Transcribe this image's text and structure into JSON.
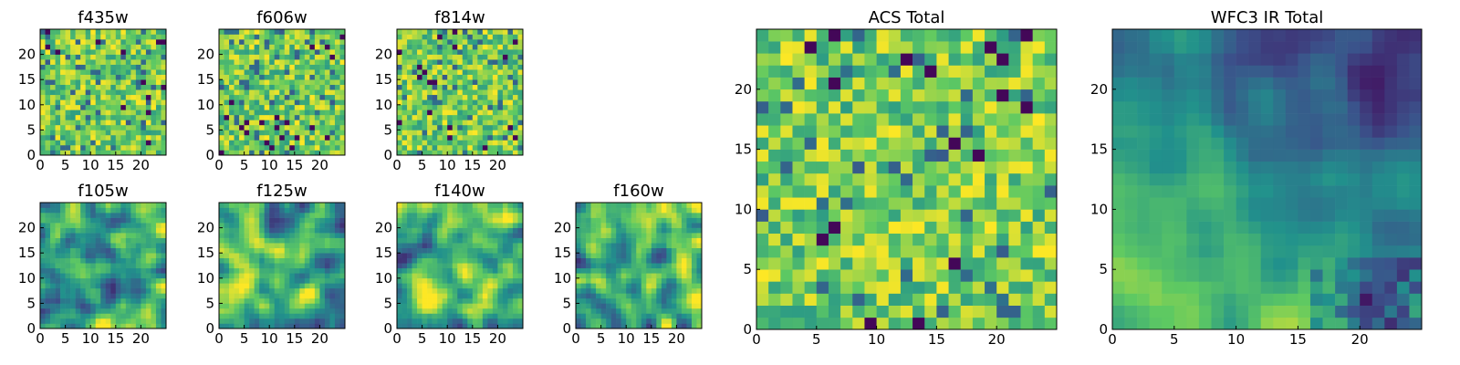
{
  "chart_data": [
    {
      "type": "heatmap",
      "title": "f435w",
      "size": 25,
      "xticks": [
        0,
        5,
        10,
        15,
        20
      ],
      "yticks": [
        0,
        5,
        10,
        15,
        20
      ],
      "texture": "noise",
      "seed": 11
    },
    {
      "type": "heatmap",
      "title": "f606w",
      "size": 25,
      "xticks": [
        0,
        5,
        10,
        15,
        20
      ],
      "yticks": [
        0,
        5,
        10,
        15,
        20
      ],
      "texture": "noise",
      "seed": 23
    },
    {
      "type": "heatmap",
      "title": "f814w",
      "size": 25,
      "xticks": [
        0,
        5,
        10,
        15,
        20
      ],
      "yticks": [
        0,
        5,
        10,
        15,
        20
      ],
      "texture": "noise",
      "seed": 37
    },
    {
      "type": "heatmap",
      "title": "f105w",
      "size": 25,
      "xticks": [
        0,
        5,
        10,
        15,
        20
      ],
      "yticks": [
        0,
        5,
        10,
        15,
        20
      ],
      "texture": "smooth",
      "seed": 41
    },
    {
      "type": "heatmap",
      "title": "f125w",
      "size": 25,
      "xticks": [
        0,
        5,
        10,
        15,
        20
      ],
      "yticks": [
        0,
        5,
        10,
        15,
        20
      ],
      "texture": "smooth",
      "seed": 53
    },
    {
      "type": "heatmap",
      "title": "f140w",
      "size": 25,
      "xticks": [
        0,
        5,
        10,
        15,
        20
      ],
      "yticks": [
        0,
        5,
        10,
        15,
        20
      ],
      "texture": "smooth",
      "seed": 67
    },
    {
      "type": "heatmap",
      "title": "f160w",
      "size": 25,
      "xticks": [
        0,
        5,
        10,
        15,
        20
      ],
      "yticks": [
        0,
        5,
        10,
        15,
        20
      ],
      "texture": "smooth",
      "seed": 79
    },
    {
      "type": "heatmap",
      "title": "ACS Total",
      "size": 25,
      "xticks": [
        0,
        5,
        10,
        15,
        20
      ],
      "yticks": [
        0,
        5,
        10,
        15,
        20
      ],
      "texture": "noise",
      "seed": 97
    },
    {
      "type": "heatmap",
      "title": "WFC3 IR Total",
      "size": 25,
      "xticks": [
        0,
        5,
        10,
        15,
        20
      ],
      "yticks": [
        0,
        5,
        10,
        15,
        20
      ],
      "texture": "ir",
      "seed": 131
    }
  ],
  "colormap": [
    "#440154",
    "#3b528b",
    "#21918c",
    "#5ec962",
    "#fde725"
  ]
}
